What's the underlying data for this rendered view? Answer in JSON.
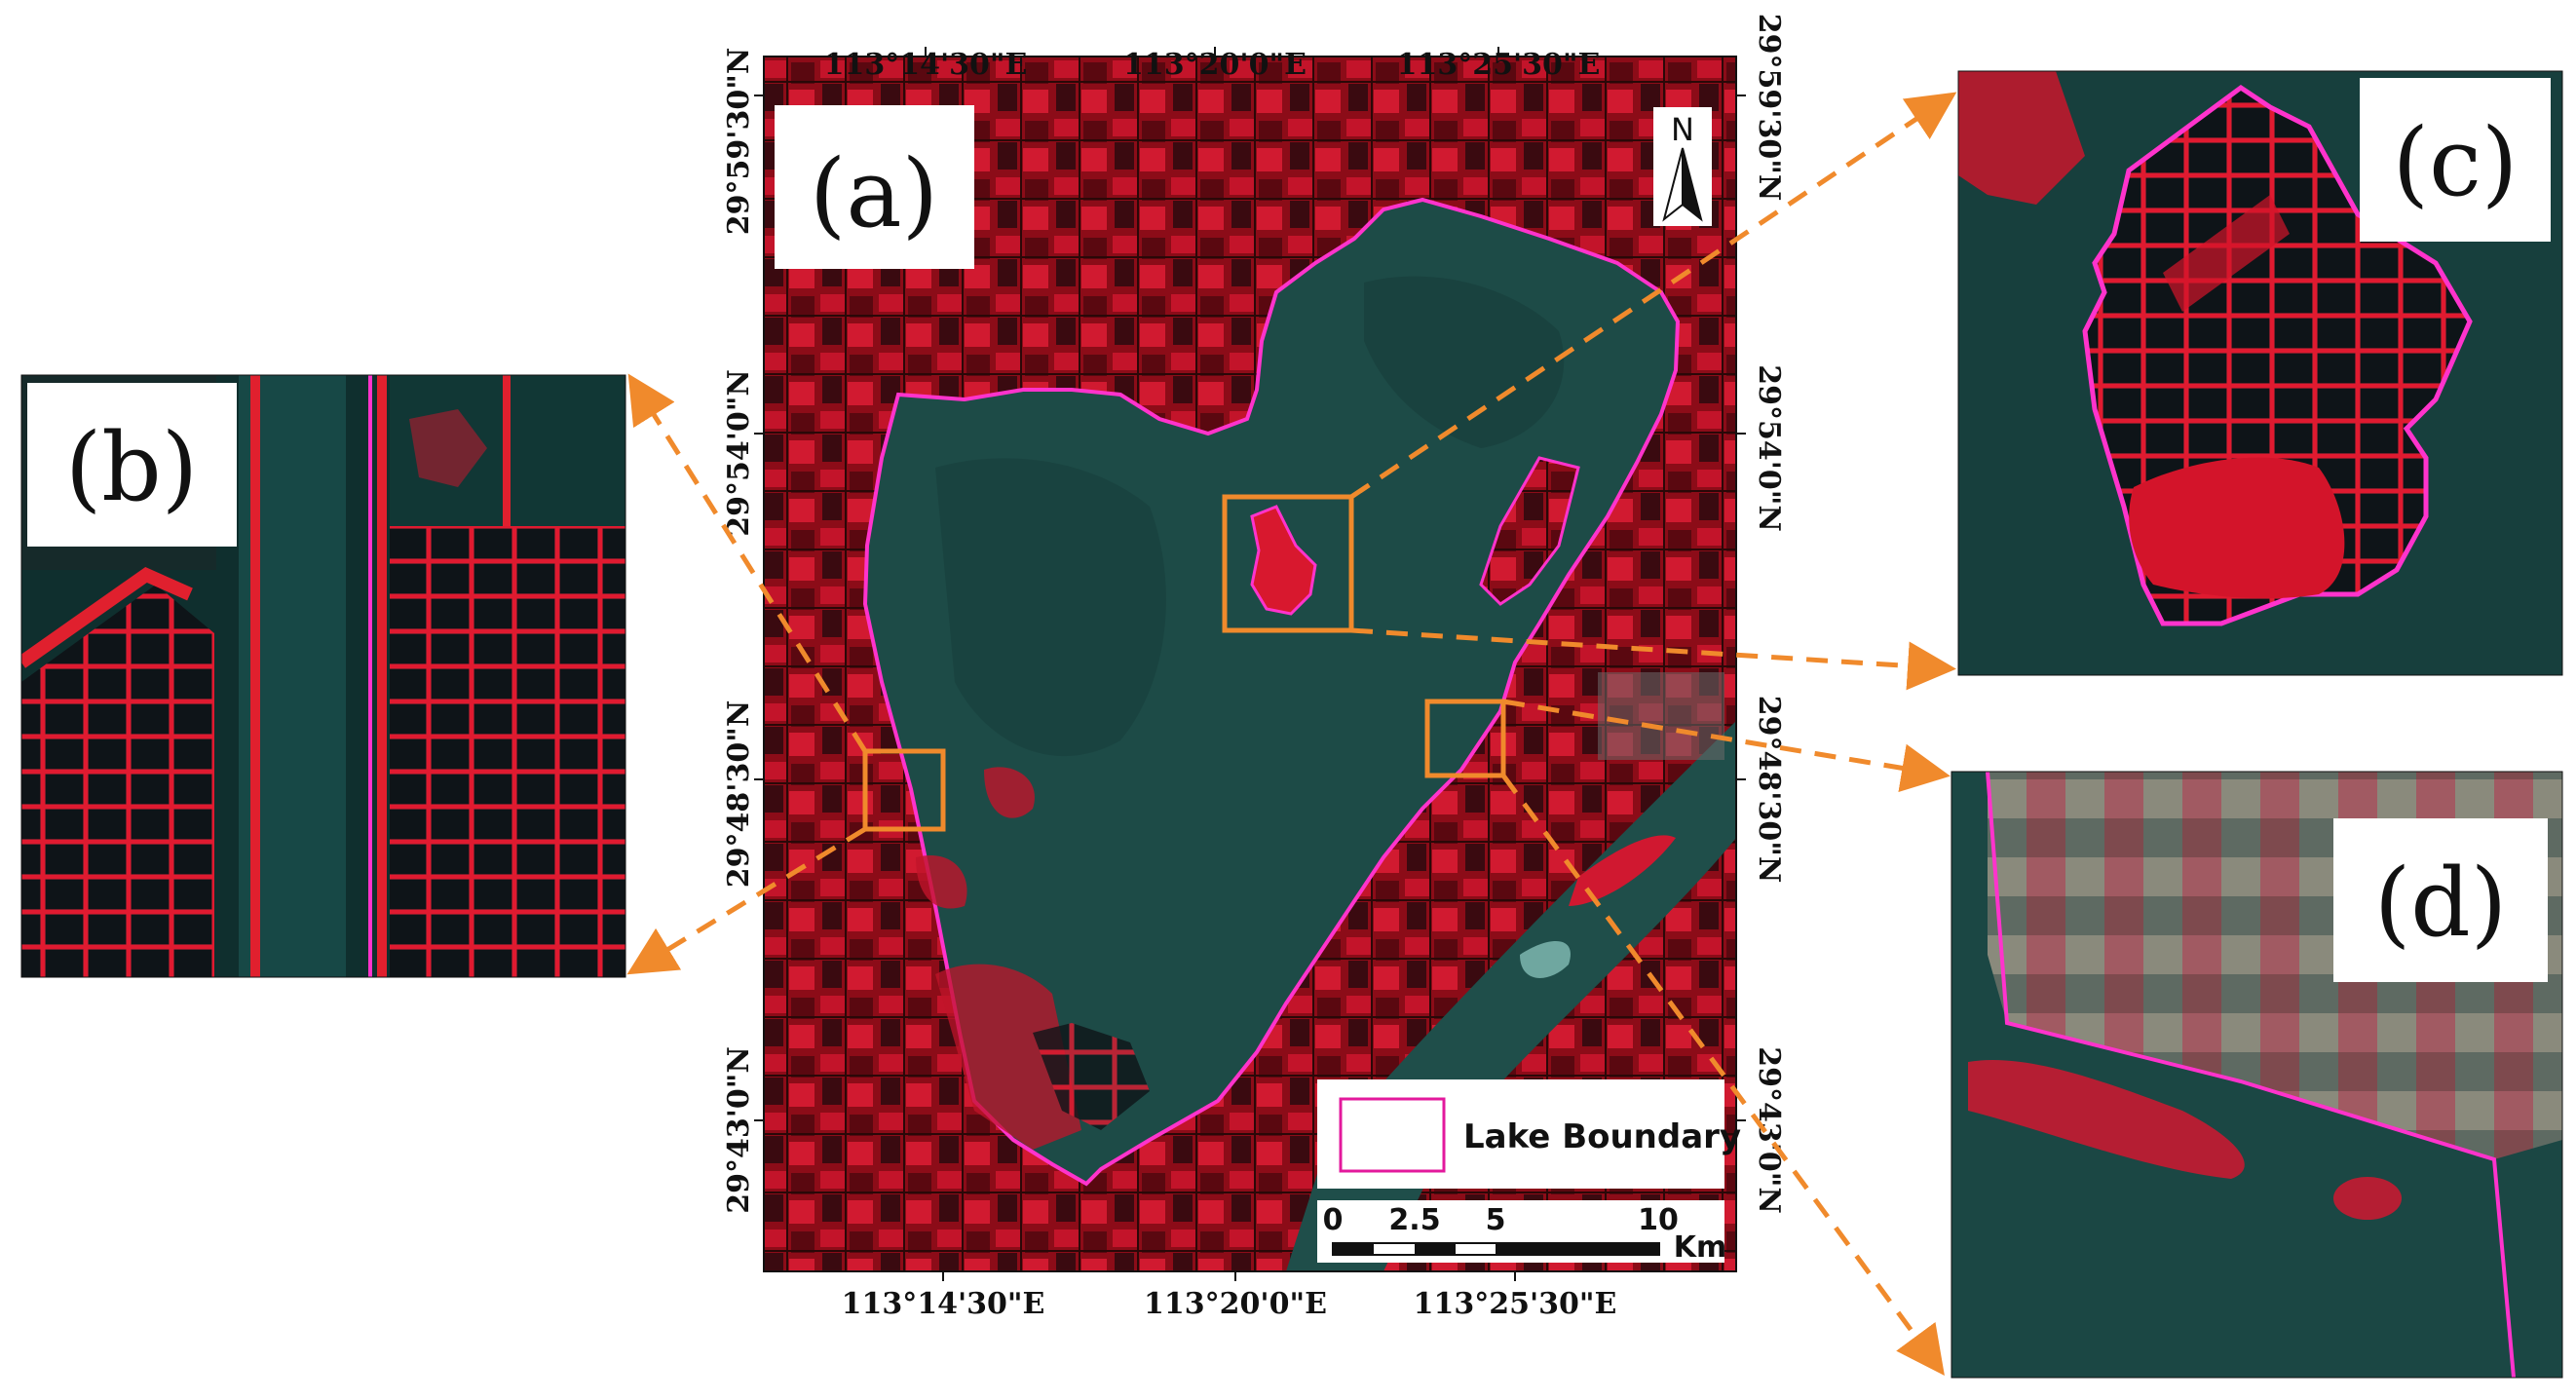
{
  "panels": {
    "a": "(a)",
    "b": "(b)",
    "c": "(c)",
    "d": "(d)"
  },
  "coords": {
    "top": [
      "113°14'30\"E",
      "113°20'0\"E",
      "113°25'30\"E"
    ],
    "bottom": [
      "113°14'30\"E",
      "113°20'0\"E",
      "113°25'30\"E"
    ],
    "left": [
      "29°59'30\"N",
      "29°54'0\"N",
      "29°48'30\"N",
      "29°43'0\"N"
    ],
    "right": [
      "29°59'30\"N",
      "29°54'0\"N",
      "29°48'30\"N",
      "29°43'0\"N"
    ]
  },
  "north_arrow": {
    "label": "N"
  },
  "legend": {
    "label": "Lake Boundary"
  },
  "scale_bar": {
    "ticks": [
      "0",
      "2.5",
      "5",
      "10"
    ],
    "unit": "Km"
  },
  "colors": {
    "land": "#b01020",
    "land_bright": "#e8182c",
    "water": "#1e4a46",
    "boundary": "#ff33cc",
    "inset_frame": "#f08a2c"
  }
}
